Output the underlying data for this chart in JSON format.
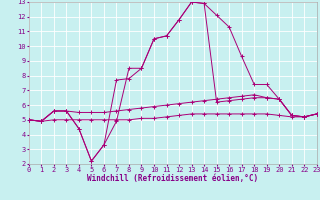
{
  "xlabel": "Windchill (Refroidissement éolien,°C)",
  "bg_color": "#c8f0f0",
  "grid_color": "#ffffff",
  "line_color": "#aa0077",
  "x": [
    0,
    1,
    2,
    3,
    4,
    5,
    6,
    7,
    8,
    9,
    10,
    11,
    12,
    13,
    14,
    15,
    16,
    17,
    18,
    19,
    20,
    21,
    22,
    23
  ],
  "line1": [
    5.0,
    4.9,
    5.6,
    5.6,
    4.4,
    2.2,
    3.3,
    4.9,
    8.5,
    8.5,
    10.5,
    10.7,
    11.8,
    13.0,
    12.9,
    12.1,
    11.3,
    9.3,
    7.4,
    7.4,
    6.4,
    5.3,
    5.2,
    5.4
  ],
  "line2": [
    5.0,
    4.9,
    5.6,
    5.6,
    4.4,
    2.2,
    3.3,
    7.7,
    7.8,
    8.5,
    10.5,
    10.7,
    11.8,
    13.0,
    12.9,
    6.2,
    6.3,
    6.4,
    6.5,
    6.5,
    6.4,
    5.3,
    5.2,
    5.4
  ],
  "line3": [
    5.0,
    4.9,
    5.6,
    5.6,
    5.5,
    5.5,
    5.5,
    5.6,
    5.7,
    5.8,
    5.9,
    6.0,
    6.1,
    6.2,
    6.3,
    6.4,
    6.5,
    6.6,
    6.7,
    6.5,
    6.4,
    5.3,
    5.2,
    5.4
  ],
  "line4": [
    5.0,
    4.9,
    5.0,
    5.0,
    5.0,
    5.0,
    5.0,
    5.0,
    5.0,
    5.1,
    5.1,
    5.2,
    5.3,
    5.4,
    5.4,
    5.4,
    5.4,
    5.4,
    5.4,
    5.4,
    5.3,
    5.2,
    5.2,
    5.4
  ],
  "ylim": [
    2,
    13
  ],
  "xlim": [
    0,
    23
  ],
  "yticks": [
    2,
    3,
    4,
    5,
    6,
    7,
    8,
    9,
    10,
    11,
    12,
    13
  ],
  "xticks": [
    0,
    1,
    2,
    3,
    4,
    5,
    6,
    7,
    8,
    9,
    10,
    11,
    12,
    13,
    14,
    15,
    16,
    17,
    18,
    19,
    20,
    21,
    22,
    23
  ],
  "tick_fontsize": 5.0,
  "xlabel_fontsize": 5.5,
  "lw": 0.7,
  "ms": 2.5
}
